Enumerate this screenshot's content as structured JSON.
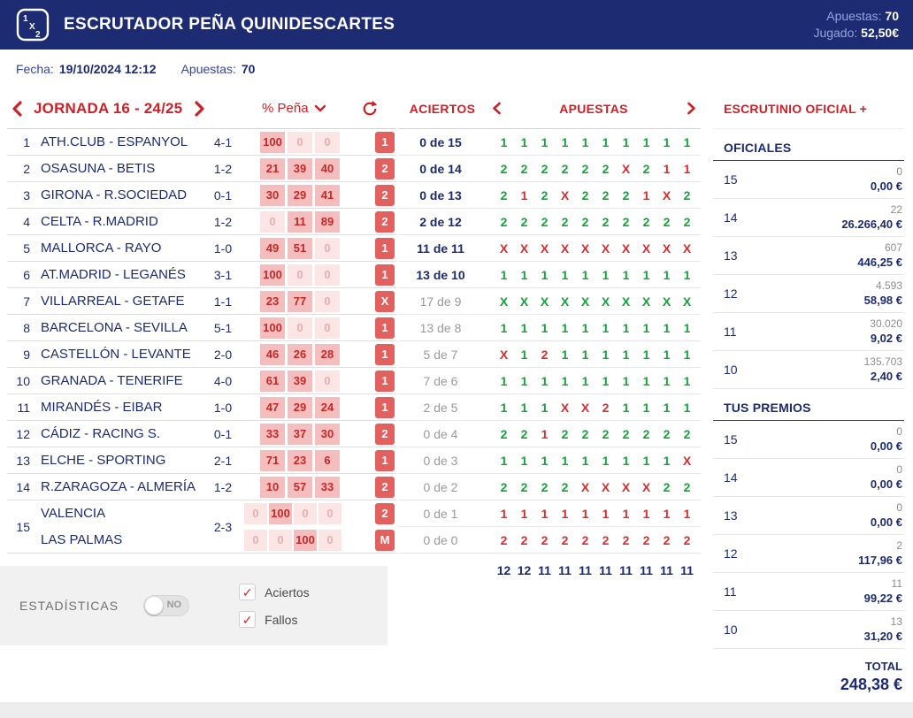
{
  "colors": {
    "navy": "#1c2b6e",
    "accent_red": "#cc2128",
    "sign_green": "#17a23c",
    "sign_red": "#d62f2f",
    "cell_pink": "#f5bebe"
  },
  "header": {
    "logo": {
      "t1": "1",
      "t2": "X",
      "t3": "2"
    },
    "title": "ESCRUTADOR PEÑA QUINIDESCARTES",
    "apuestas_label": "Apuestas:",
    "apuestas_value": "70",
    "jugado_label": "Jugado:",
    "jugado_value": "52,50€"
  },
  "subheader": {
    "fecha_label": "Fecha:",
    "fecha_value": "19/10/2024 12:12",
    "apuestas_label": "Apuestas:",
    "apuestas_value": "70"
  },
  "jornada": {
    "title": "JORNADA 16 - 24/25",
    "pena_label": "% Peña",
    "matches": [
      {
        "num": "1",
        "name": "ATH.CLUB - ESPANYOL",
        "score": "4-1",
        "pcts": [
          "100",
          "0",
          "0"
        ],
        "sign": "1"
      },
      {
        "num": "2",
        "name": "OSASUNA - BETIS",
        "score": "1-2",
        "pcts": [
          "21",
          "39",
          "40"
        ],
        "sign": "2"
      },
      {
        "num": "3",
        "name": "GIRONA - R.SOCIEDAD",
        "score": "0-1",
        "pcts": [
          "30",
          "29",
          "41"
        ],
        "sign": "2"
      },
      {
        "num": "4",
        "name": "CELTA - R.MADRID",
        "score": "1-2",
        "pcts": [
          "0",
          "11",
          "89"
        ],
        "sign": "2"
      },
      {
        "num": "5",
        "name": "MALLORCA - RAYO",
        "score": "1-0",
        "pcts": [
          "49",
          "51",
          "0"
        ],
        "sign": "1"
      },
      {
        "num": "6",
        "name": "AT.MADRID - LEGANÉS",
        "score": "3-1",
        "pcts": [
          "100",
          "0",
          "0"
        ],
        "sign": "1"
      },
      {
        "num": "7",
        "name": "VILLARREAL - GETAFE",
        "score": "1-1",
        "pcts": [
          "23",
          "77",
          "0"
        ],
        "sign": "X"
      },
      {
        "num": "8",
        "name": "BARCELONA - SEVILLA",
        "score": "5-1",
        "pcts": [
          "100",
          "0",
          "0"
        ],
        "sign": "1"
      },
      {
        "num": "9",
        "name": "CASTELLÓN - LEVANTE",
        "score": "2-0",
        "pcts": [
          "46",
          "26",
          "28"
        ],
        "sign": "1"
      },
      {
        "num": "10",
        "name": "GRANADA - TENERIFE",
        "score": "4-0",
        "pcts": [
          "61",
          "39",
          "0"
        ],
        "sign": "1"
      },
      {
        "num": "11",
        "name": "MIRANDÉS - EIBAR",
        "score": "1-0",
        "pcts": [
          "47",
          "29",
          "24"
        ],
        "sign": "1"
      },
      {
        "num": "12",
        "name": "CÁDIZ - RACING S.",
        "score": "0-1",
        "pcts": [
          "33",
          "37",
          "30"
        ],
        "sign": "2"
      },
      {
        "num": "13",
        "name": "ELCHE - SPORTING",
        "score": "2-1",
        "pcts": [
          "71",
          "23",
          "6"
        ],
        "sign": "1"
      },
      {
        "num": "14",
        "name": "R.ZARAGOZA - ALMERÍA",
        "score": "1-2",
        "pcts": [
          "10",
          "57",
          "33"
        ],
        "sign": "2"
      }
    ],
    "match15": {
      "num": "15",
      "score": "2-3",
      "rows": [
        {
          "name": "VALENCIA",
          "pcts": [
            "0",
            "100",
            "0",
            "0"
          ],
          "sign": "2"
        },
        {
          "name": "LAS PALMAS",
          "pcts": [
            "0",
            "0",
            "100",
            "0"
          ],
          "sign": "M"
        }
      ]
    }
  },
  "stats": {
    "label": "ESTADÍSTICAS",
    "toggle_label": "NO",
    "check_glyph": "✓",
    "checkboxes": [
      {
        "label": "Aciertos",
        "checked": true
      },
      {
        "label": "Fallos",
        "checked": true
      }
    ]
  },
  "scrutiny": {
    "aciertos_header": "ACIERTOS",
    "apuestas_header": "APUESTAS",
    "rows": [
      {
        "label": "0 de 15",
        "bold": true,
        "result": "1",
        "signs": [
          "1",
          "1",
          "1",
          "1",
          "1",
          "1",
          "1",
          "1",
          "1",
          "1"
        ]
      },
      {
        "label": "0 de 14",
        "bold": true,
        "result": "2",
        "signs": [
          "2",
          "2",
          "2",
          "2",
          "2",
          "2",
          "X",
          "2",
          "1",
          "1"
        ]
      },
      {
        "label": "0 de 13",
        "bold": true,
        "result": "2",
        "signs": [
          "2",
          "1",
          "2",
          "X",
          "2",
          "2",
          "2",
          "1",
          "X",
          "2"
        ]
      },
      {
        "label": "2 de 12",
        "bold": true,
        "result": "2",
        "signs": [
          "2",
          "2",
          "2",
          "2",
          "2",
          "2",
          "2",
          "2",
          "2",
          "2"
        ]
      },
      {
        "label": "11 de 11",
        "bold": true,
        "result": "1",
        "signs": [
          "X",
          "X",
          "X",
          "X",
          "X",
          "X",
          "X",
          "X",
          "X",
          "X"
        ]
      },
      {
        "label": "13 de 10",
        "bold": true,
        "result": "1",
        "signs": [
          "1",
          "1",
          "1",
          "1",
          "1",
          "1",
          "1",
          "1",
          "1",
          "1"
        ]
      },
      {
        "label": "17 de 9",
        "bold": false,
        "result": "X",
        "signs": [
          "X",
          "X",
          "X",
          "X",
          "X",
          "X",
          "X",
          "X",
          "X",
          "X"
        ]
      },
      {
        "label": "13 de 8",
        "bold": false,
        "result": "1",
        "signs": [
          "1",
          "1",
          "1",
          "1",
          "1",
          "1",
          "1",
          "1",
          "1",
          "1"
        ]
      },
      {
        "label": "5 de 7",
        "bold": false,
        "result": "1",
        "signs": [
          "X",
          "1",
          "2",
          "1",
          "1",
          "1",
          "1",
          "1",
          "1",
          "1"
        ]
      },
      {
        "label": "7 de 6",
        "bold": false,
        "result": "1",
        "signs": [
          "1",
          "1",
          "1",
          "1",
          "1",
          "1",
          "1",
          "1",
          "1",
          "1"
        ]
      },
      {
        "label": "2 de 5",
        "bold": false,
        "result": "1",
        "signs": [
          "1",
          "1",
          "1",
          "X",
          "X",
          "2",
          "1",
          "1",
          "1",
          "1"
        ]
      },
      {
        "label": "0 de 4",
        "bold": false,
        "result": "2",
        "signs": [
          "2",
          "2",
          "1",
          "2",
          "2",
          "2",
          "2",
          "2",
          "2",
          "2"
        ]
      },
      {
        "label": "0 de 3",
        "bold": false,
        "result": "1",
        "signs": [
          "1",
          "1",
          "1",
          "1",
          "1",
          "1",
          "1",
          "1",
          "1",
          "X"
        ]
      },
      {
        "label": "0 de 2",
        "bold": false,
        "result": "2",
        "signs": [
          "2",
          "2",
          "2",
          "2",
          "X",
          "X",
          "X",
          "X",
          "2",
          "2"
        ]
      },
      {
        "label": "0 de 1",
        "bold": false,
        "result": "2",
        "signs": [
          "1",
          "1",
          "1",
          "1",
          "1",
          "1",
          "1",
          "1",
          "1",
          "1"
        ]
      },
      {
        "label": "0 de 0",
        "bold": false,
        "result": "M",
        "signs": [
          "2",
          "2",
          "2",
          "2",
          "2",
          "2",
          "2",
          "2",
          "2",
          "2"
        ]
      }
    ],
    "totals": [
      "12",
      "12",
      "11",
      "11",
      "11",
      "11",
      "11",
      "11",
      "11",
      "11"
    ]
  },
  "official": {
    "title": "ESCRUTINIO OFICIAL +",
    "sections": [
      {
        "heading": "OFICIALES",
        "rows": [
          {
            "cat": "15",
            "count": "0",
            "prize": "0,00 €"
          },
          {
            "cat": "14",
            "count": "22",
            "prize": "26.266,40 €"
          },
          {
            "cat": "13",
            "count": "607",
            "prize": "446,25 €"
          },
          {
            "cat": "12",
            "count": "4.593",
            "prize": "58,98 €"
          },
          {
            "cat": "11",
            "count": "30.020",
            "prize": "9,02 €"
          },
          {
            "cat": "10",
            "count": "135.703",
            "prize": "2,40 €"
          }
        ]
      },
      {
        "heading": "TUS PREMIOS",
        "rows": [
          {
            "cat": "15",
            "count": "0",
            "prize": "0,00 €"
          },
          {
            "cat": "14",
            "count": "0",
            "prize": "0,00 €"
          },
          {
            "cat": "13",
            "count": "0",
            "prize": "0,00 €"
          },
          {
            "cat": "12",
            "count": "2",
            "prize": "117,96 €"
          },
          {
            "cat": "11",
            "count": "11",
            "prize": "99,22 €"
          },
          {
            "cat": "10",
            "count": "13",
            "prize": "31,20 €"
          }
        ]
      }
    ],
    "total_label": "TOTAL",
    "total_value": "248,38 €"
  }
}
